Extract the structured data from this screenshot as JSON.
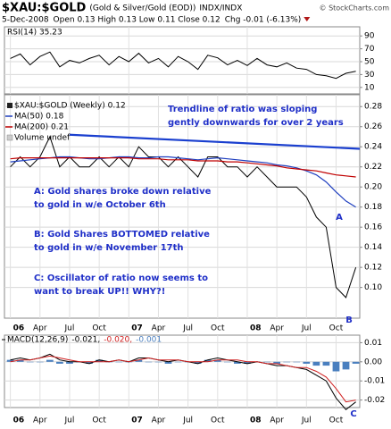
{
  "header": {
    "symbol": "$XAU:$GOLD",
    "description": "(Gold & Silver/Gold (EOD))",
    "exchange": "INDX/INDX",
    "source": "© StockCharts.com",
    "date": "5-Dec-2008",
    "quote": "Open 0.13 High 0.13 Low 0.11 Close 0.12",
    "change": "Chg -0.01 (-6.13%)"
  },
  "chart_data": [
    {
      "type": "line",
      "xlim": [
        -0.6,
        35.4
      ],
      "ylim": [
        0,
        100
      ],
      "yticks": [
        90,
        70,
        50,
        30,
        10
      ],
      "grid": true,
      "x": [
        0,
        1,
        2,
        3,
        4,
        5,
        6,
        7,
        8,
        9,
        10,
        11,
        12,
        13,
        14,
        15,
        16,
        17,
        18,
        19,
        20,
        21,
        22,
        23,
        24,
        25,
        26,
        27,
        28,
        29,
        30,
        31,
        32,
        33,
        34,
        35
      ],
      "series": [
        {
          "name": "RSI(14) 35.23",
          "color": "#000000",
          "values": [
            55,
            62,
            45,
            58,
            65,
            42,
            52,
            48,
            55,
            60,
            45,
            58,
            50,
            63,
            48,
            55,
            42,
            58,
            50,
            38,
            60,
            56,
            45,
            52,
            44,
            55,
            45,
            42,
            48,
            40,
            38,
            30,
            28,
            24,
            32,
            35
          ]
        }
      ]
    },
    {
      "type": "line",
      "xlim": [
        -0.6,
        35.4
      ],
      "ylim": [
        0.073,
        0.29
      ],
      "grid": true,
      "yticks": [
        0.28,
        0.26,
        0.24,
        0.22,
        {
          "value": 0.2,
          "label": "0.20"
        },
        0.18,
        0.16,
        0.14,
        0.12,
        {
          "value": 0.1,
          "label": "0.10"
        }
      ],
      "xticks": [
        {
          "value": 0,
          "label": "06"
        },
        {
          "value": 3,
          "label": "Apr"
        },
        {
          "value": 6,
          "label": "Jul"
        },
        {
          "value": 9,
          "label": "Oct"
        },
        {
          "value": 12,
          "label": "07"
        },
        {
          "value": 15,
          "label": "Apr"
        },
        {
          "value": 18,
          "label": "Jul"
        },
        {
          "value": 21,
          "label": "Oct"
        },
        {
          "value": 24,
          "label": "08"
        },
        {
          "value": 27,
          "label": "Apr"
        },
        {
          "value": 30,
          "label": "Jul"
        },
        {
          "value": 33,
          "label": "Oct"
        }
      ],
      "x": [
        0,
        1,
        2,
        3,
        4,
        5,
        6,
        7,
        8,
        9,
        10,
        11,
        12,
        13,
        14,
        15,
        16,
        17,
        18,
        19,
        20,
        21,
        22,
        23,
        24,
        25,
        26,
        27,
        28,
        29,
        30,
        31,
        32,
        33,
        34,
        35
      ],
      "series": [
        {
          "name": "$XAU:$GOLD (Weekly) 0.12",
          "color": "#000000",
          "width": 1,
          "values": [
            0.22,
            0.23,
            0.22,
            0.23,
            0.25,
            0.22,
            0.23,
            0.22,
            0.22,
            0.23,
            0.22,
            0.23,
            0.22,
            0.24,
            0.23,
            0.23,
            0.22,
            0.23,
            0.22,
            0.21,
            0.23,
            0.23,
            0.22,
            0.22,
            0.21,
            0.22,
            0.21,
            0.2,
            0.2,
            0.2,
            0.19,
            0.17,
            0.16,
            0.1,
            0.09,
            0.12
          ]
        },
        {
          "name": "MA(50) 0.18",
          "color": "#1f3fbf",
          "width": 1.2,
          "values": [
            0.225,
            0.226,
            0.227,
            0.228,
            0.229,
            0.23,
            0.23,
            0.229,
            0.228,
            0.228,
            0.229,
            0.23,
            0.23,
            0.229,
            0.229,
            0.23,
            0.23,
            0.229,
            0.228,
            0.227,
            0.228,
            0.229,
            0.228,
            0.227,
            0.226,
            0.225,
            0.224,
            0.222,
            0.221,
            0.219,
            0.216,
            0.212,
            0.205,
            0.195,
            0.186,
            0.18
          ]
        },
        {
          "name": "MA(200) 0.21",
          "color": "#c00000",
          "width": 1.2,
          "values": [
            0.228,
            0.229,
            0.229,
            0.229,
            0.229,
            0.229,
            0.229,
            0.229,
            0.229,
            0.229,
            0.229,
            0.229,
            0.229,
            0.228,
            0.228,
            0.228,
            0.227,
            0.227,
            0.227,
            0.226,
            0.226,
            0.226,
            0.225,
            0.225,
            0.224,
            0.223,
            0.222,
            0.221,
            0.219,
            0.218,
            0.217,
            0.216,
            0.214,
            0.212,
            0.211,
            0.21
          ]
        }
      ],
      "volume_label": "Volume undef",
      "trendline": {
        "color": "#1a3fcf",
        "x": [
          6,
          35.4
        ],
        "values": [
          0.252,
          0.238
        ]
      },
      "annotations": [
        {
          "lines": [
            "Trendline of ratio was sloping",
            "gently downwards for over 2 years"
          ]
        },
        {
          "lines": [
            "A: Gold shares broke down relative",
            "to gold in w/e October 6th"
          ]
        },
        {
          "lines": [
            "B: Gold Shares BOTTOMED relative",
            "to gold in w/e November 17th"
          ]
        },
        {
          "lines": [
            "C: Oscillator of ratio now seems to",
            "want to break UP!! WHY?!"
          ]
        }
      ],
      "markers": [
        "A",
        "B"
      ]
    },
    {
      "type": "line",
      "title": "MACD(12,26,9)",
      "xlim": [
        -0.6,
        35.4
      ],
      "ylim": [
        -0.023,
        0.013
      ],
      "grid": true,
      "yticks": [
        0.01,
        {
          "value": 0,
          "label": "0.00"
        },
        -0.01,
        -0.02
      ],
      "xticks": [
        {
          "value": 0,
          "label": "06"
        },
        {
          "value": 3,
          "label": "Apr"
        },
        {
          "value": 6,
          "label": "Jul"
        },
        {
          "value": 9,
          "label": "Oct"
        },
        {
          "value": 12,
          "label": "07"
        },
        {
          "value": 15,
          "label": "Apr"
        },
        {
          "value": 18,
          "label": "Jul"
        },
        {
          "value": 21,
          "label": "Oct"
        },
        {
          "value": 24,
          "label": "08"
        },
        {
          "value": 27,
          "label": "Apr"
        },
        {
          "value": 30,
          "label": "Jul"
        },
        {
          "value": 33,
          "label": "Oct"
        }
      ],
      "x": [
        0,
        1,
        2,
        3,
        4,
        5,
        6,
        7,
        8,
        9,
        10,
        11,
        12,
        13,
        14,
        15,
        16,
        17,
        18,
        19,
        20,
        21,
        22,
        23,
        24,
        25,
        26,
        27,
        28,
        29,
        30,
        31,
        32,
        33,
        34,
        35
      ],
      "series": [
        {
          "name": "-0.001",
          "color": "#4a7fbf",
          "style": "bar",
          "values": [
            0.001,
            0.001,
            0,
            0,
            0.001,
            -0.001,
            -0.001,
            0,
            -0.001,
            0.001,
            0,
            0,
            0,
            0.001,
            0,
            0,
            -0.001,
            0,
            0,
            -0.001,
            0.001,
            0.001,
            0,
            -0.001,
            -0.001,
            0,
            0,
            -0.001,
            0,
            0,
            -0.001,
            -0.002,
            -0.002,
            -0.005,
            -0.004,
            -0.001
          ]
        },
        {
          "name": "-0.021,",
          "color": "#000000",
          "style": "line",
          "values": [
            0.001,
            0.002,
            0.001,
            0.002,
            0.004,
            0.001,
            0,
            0,
            -0.001,
            0.001,
            0,
            0.001,
            0,
            0.002,
            0.002,
            0.001,
            0,
            0.001,
            0,
            -0.001,
            0.001,
            0.002,
            0.001,
            0,
            -0.001,
            0,
            -0.001,
            -0.002,
            -0.002,
            -0.003,
            -0.004,
            -0.007,
            -0.01,
            -0.019,
            -0.025,
            -0.021
          ]
        },
        {
          "name": "-0.020,",
          "color": "#d02020",
          "style": "line",
          "values": [
            0,
            0.001,
            0.001,
            0.002,
            0.003,
            0.002,
            0.001,
            0,
            0,
            0,
            0,
            0.001,
            0,
            0.001,
            0.002,
            0.001,
            0.001,
            0.001,
            0,
            0,
            0,
            0.001,
            0.001,
            0.001,
            0,
            0,
            -0.001,
            -0.001,
            -0.002,
            -0.003,
            -0.003,
            -0.005,
            -0.008,
            -0.014,
            -0.021,
            -0.02
          ]
        }
      ],
      "markers": [
        "C"
      ]
    }
  ]
}
